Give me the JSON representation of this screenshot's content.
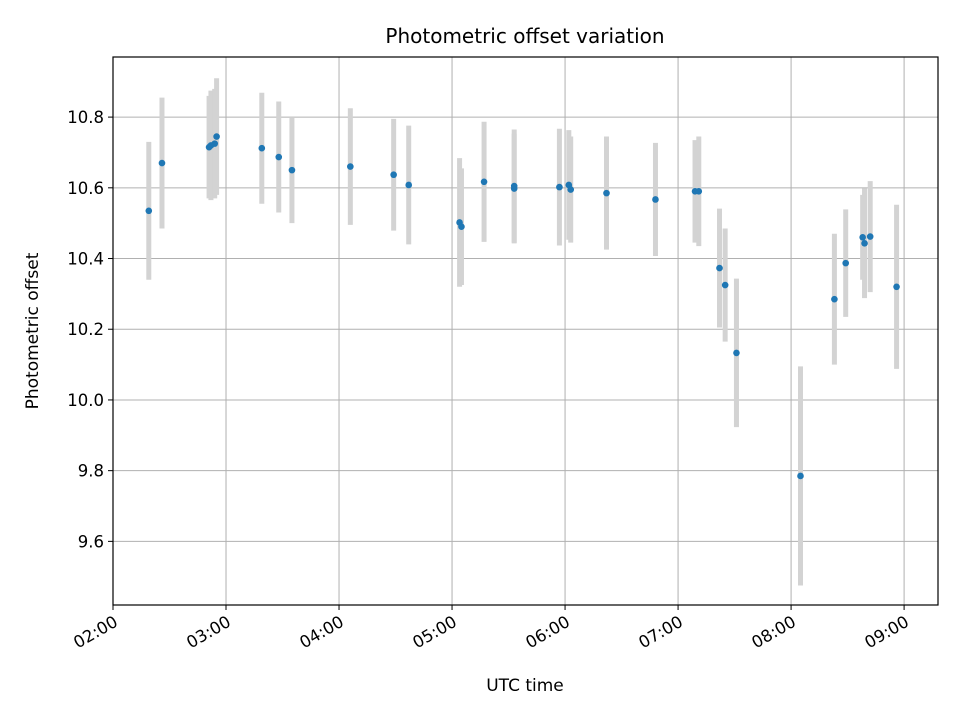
{
  "chart_data": {
    "type": "scatter",
    "title": "Photometric offset variation",
    "xlabel": "UTC time",
    "ylabel": "Photometric offset",
    "xlim": [
      "02:00",
      "09:18"
    ],
    "ylim": [
      9.42,
      10.97
    ],
    "grid": true,
    "x_ticks": [
      "02:00",
      "03:00",
      "04:00",
      "05:00",
      "06:00",
      "07:00",
      "08:00",
      "09:00"
    ],
    "y_ticks": [
      "9.6",
      "9.8",
      "10.0",
      "10.2",
      "10.4",
      "10.6",
      "10.8"
    ],
    "colors": {
      "marker": "#1f77b4",
      "errorbar": "#d3d3d3",
      "grid": "#b0b0b0"
    },
    "series": [
      {
        "points": [
          {
            "x": "02:19",
            "y": 10.535,
            "yerr": 0.195
          },
          {
            "x": "02:26",
            "y": 10.67,
            "yerr": 0.185
          },
          {
            "x": "02:51",
            "y": 10.715,
            "yerr": 0.145
          },
          {
            "x": "02:52",
            "y": 10.72,
            "yerr": 0.155
          },
          {
            "x": "02:54",
            "y": 10.725,
            "yerr": 0.155
          },
          {
            "x": "02:55",
            "y": 10.745,
            "yerr": 0.165
          },
          {
            "x": "03:19",
            "y": 10.712,
            "yerr": 0.157
          },
          {
            "x": "03:28",
            "y": 10.687,
            "yerr": 0.157
          },
          {
            "x": "03:35",
            "y": 10.65,
            "yerr": 0.15
          },
          {
            "x": "04:06",
            "y": 10.66,
            "yerr": 0.165
          },
          {
            "x": "04:29",
            "y": 10.637,
            "yerr": 0.158
          },
          {
            "x": "04:37",
            "y": 10.608,
            "yerr": 0.168
          },
          {
            "x": "05:04",
            "y": 10.502,
            "yerr": 0.182
          },
          {
            "x": "05:05",
            "y": 10.49,
            "yerr": 0.165
          },
          {
            "x": "05:17",
            "y": 10.617,
            "yerr": 0.17
          },
          {
            "x": "05:33",
            "y": 10.598,
            "yerr": 0.155
          },
          {
            "x": "05:33",
            "y": 10.605,
            "yerr": 0.16
          },
          {
            "x": "05:57",
            "y": 10.602,
            "yerr": 0.165
          },
          {
            "x": "06:02",
            "y": 10.608,
            "yerr": 0.155
          },
          {
            "x": "06:03",
            "y": 10.595,
            "yerr": 0.15
          },
          {
            "x": "06:22",
            "y": 10.585,
            "yerr": 0.16
          },
          {
            "x": "06:48",
            "y": 10.567,
            "yerr": 0.16
          },
          {
            "x": "07:09",
            "y": 10.59,
            "yerr": 0.145
          },
          {
            "x": "07:11",
            "y": 10.59,
            "yerr": 0.155
          },
          {
            "x": "07:22",
            "y": 10.373,
            "yerr": 0.168
          },
          {
            "x": "07:25",
            "y": 10.325,
            "yerr": 0.16
          },
          {
            "x": "07:31",
            "y": 10.133,
            "yerr": 0.21
          },
          {
            "x": "08:05",
            "y": 9.785,
            "yerr": 0.31
          },
          {
            "x": "08:23",
            "y": 10.285,
            "yerr": 0.185
          },
          {
            "x": "08:29",
            "y": 10.387,
            "yerr": 0.152
          },
          {
            "x": "08:38",
            "y": 10.46,
            "yerr": 0.12
          },
          {
            "x": "08:39",
            "y": 10.443,
            "yerr": 0.155
          },
          {
            "x": "08:42",
            "y": 10.462,
            "yerr": 0.157
          },
          {
            "x": "08:56",
            "y": 10.32,
            "yerr": 0.232
          }
        ]
      }
    ]
  }
}
